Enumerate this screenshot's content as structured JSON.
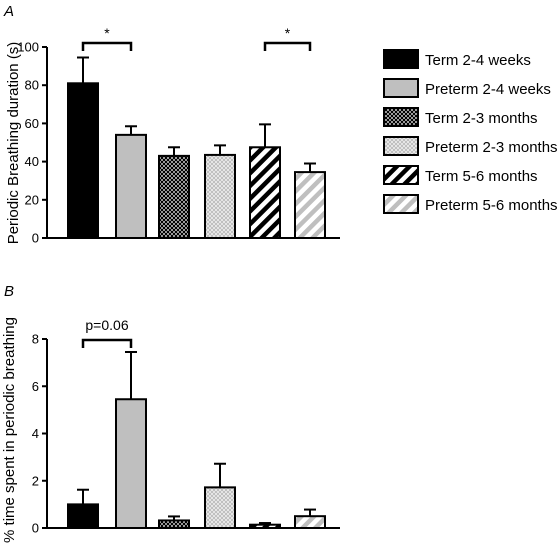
{
  "colors": {
    "term_2_4_weeks": "#000000",
    "preterm_2_4_weeks": "#bfbfbf",
    "hatch_dark": "#000000",
    "hatch_light": "#bfbfbf",
    "edge": "#000000"
  },
  "legend": [
    {
      "label": "Term 2-4 weeks",
      "fill": "solid-black"
    },
    {
      "label": "Preterm 2-4 weeks",
      "fill": "solid-grey"
    },
    {
      "label": "Term 2-3 months",
      "fill": "crosshatch-black"
    },
    {
      "label": "Preterm 2-3 months",
      "fill": "crosshatch-grey"
    },
    {
      "label": "Term 5-6 months",
      "fill": "diagonal-black"
    },
    {
      "label": "Preterm 5-6 months",
      "fill": "diagonal-grey"
    }
  ],
  "chart_data": [
    {
      "type": "bar",
      "panel_label": "A",
      "ylabel": "Periodic Breathing duration (s)",
      "ylim": [
        0,
        100
      ],
      "yticks": [
        "0",
        "20",
        "40",
        "60",
        "80",
        "100"
      ],
      "categories": [
        "Term 2-4 weeks",
        "Preterm 2-4 weeks",
        "Term 2-3 months",
        "Preterm 2-3 months",
        "Term 5-6 months",
        "Preterm 5-6 months"
      ],
      "values": [
        81,
        54,
        43,
        43.5,
        47.5,
        34.5
      ],
      "errors": [
        13.5,
        4.5,
        4.5,
        5,
        12,
        4.5
      ],
      "annotations": [
        {
          "text": "*",
          "from": 0,
          "to": 1
        },
        {
          "text": "*",
          "from": 4,
          "to": 5
        }
      ]
    },
    {
      "type": "bar",
      "panel_label": "B",
      "ylabel": "% time spent in periodic breathing",
      "ylim": [
        0,
        8
      ],
      "yticks": [
        "0",
        "2",
        "4",
        "6",
        "8"
      ],
      "categories": [
        "Term 2-4 weeks",
        "Preterm 2-4 weeks",
        "Term 2-3 months",
        "Preterm 2-3 months",
        "Term 5-6 months",
        "Preterm 5-6 months"
      ],
      "values": [
        1.0,
        5.45,
        0.32,
        1.72,
        0.14,
        0.5
      ],
      "errors": [
        0.62,
        2.0,
        0.17,
        1.0,
        0.07,
        0.28
      ],
      "annotations": [
        {
          "text": "p=0.06",
          "from": 0,
          "to": 1
        }
      ]
    }
  ]
}
